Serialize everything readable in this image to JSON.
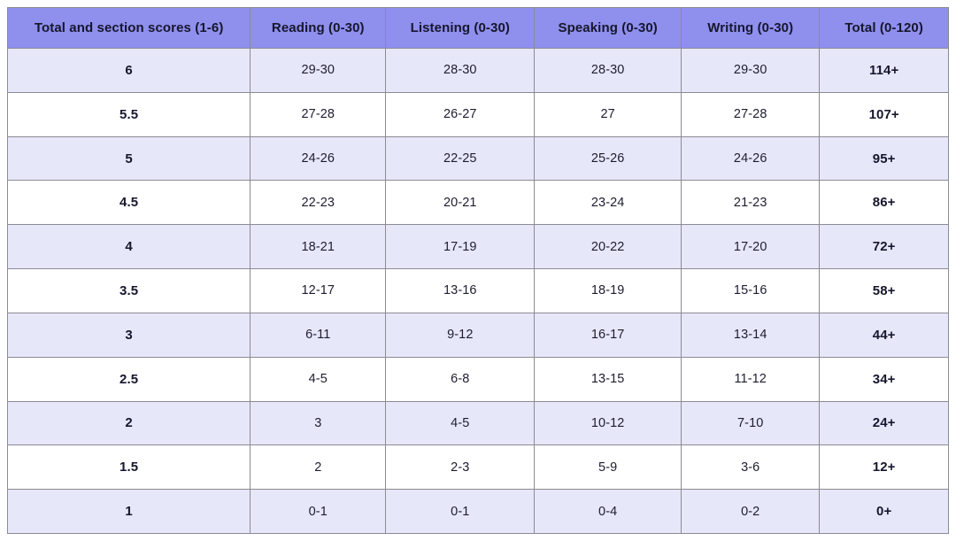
{
  "chart_data": {
    "type": "table",
    "columns": [
      "Total and section scores (1-6)",
      "Reading (0-30)",
      "Listening (0-30)",
      "Speaking (0-30)",
      "Writing (0-30)",
      "Total (0-120)"
    ],
    "rows": [
      [
        "6",
        "29-30",
        "28-30",
        "28-30",
        "29-30",
        "114+"
      ],
      [
        "5.5",
        "27-28",
        "26-27",
        "27",
        "27-28",
        "107+"
      ],
      [
        "5",
        "24-26",
        "22-25",
        "25-26",
        "24-26",
        "95+"
      ],
      [
        "4.5",
        "22-23",
        "20-21",
        "23-24",
        "21-23",
        "86+"
      ],
      [
        "4",
        "18-21",
        "17-19",
        "20-22",
        "17-20",
        "72+"
      ],
      [
        "3.5",
        "12-17",
        "13-16",
        "18-19",
        "15-16",
        "58+"
      ],
      [
        "3",
        "6-11",
        "9-12",
        "16-17",
        "13-14",
        "44+"
      ],
      [
        "2.5",
        "4-5",
        "6-8",
        "13-15",
        "11-12",
        "34+"
      ],
      [
        "2",
        "3",
        "4-5",
        "10-12",
        "7-10",
        "24+"
      ],
      [
        "1.5",
        "2",
        "2-3",
        "5-9",
        "3-6",
        "12+"
      ],
      [
        "1",
        "0-1",
        "0-1",
        "0-4",
        "0-2",
        "0+"
      ]
    ],
    "layout": {
      "grid": true,
      "striped_rows": true,
      "bold_columns": [
        "first",
        "last"
      ]
    }
  },
  "colors": {
    "header_bg": "#8f8fee",
    "row_alt_bg": "#e7e7fa",
    "row_bg": "#ffffff",
    "border": "#8b8b93",
    "text": "#16162d"
  }
}
